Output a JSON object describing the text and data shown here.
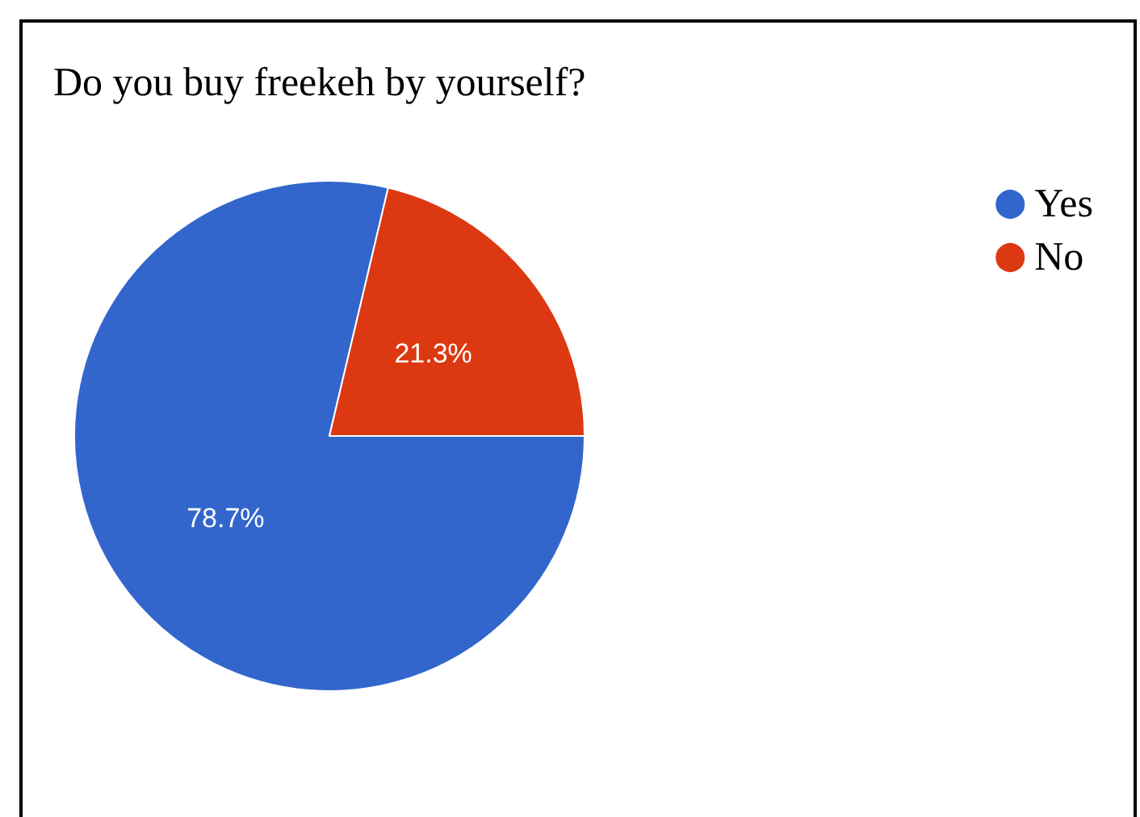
{
  "chart_data": {
    "type": "pie",
    "title": "Do you buy freekeh by yourself?",
    "categories": [
      "Yes",
      "No"
    ],
    "values": [
      78.7,
      21.3
    ],
    "colors": [
      "#3366cc",
      "#dc3912"
    ],
    "value_labels": [
      "78.7%",
      "21.3%"
    ],
    "legend": "top right"
  }
}
